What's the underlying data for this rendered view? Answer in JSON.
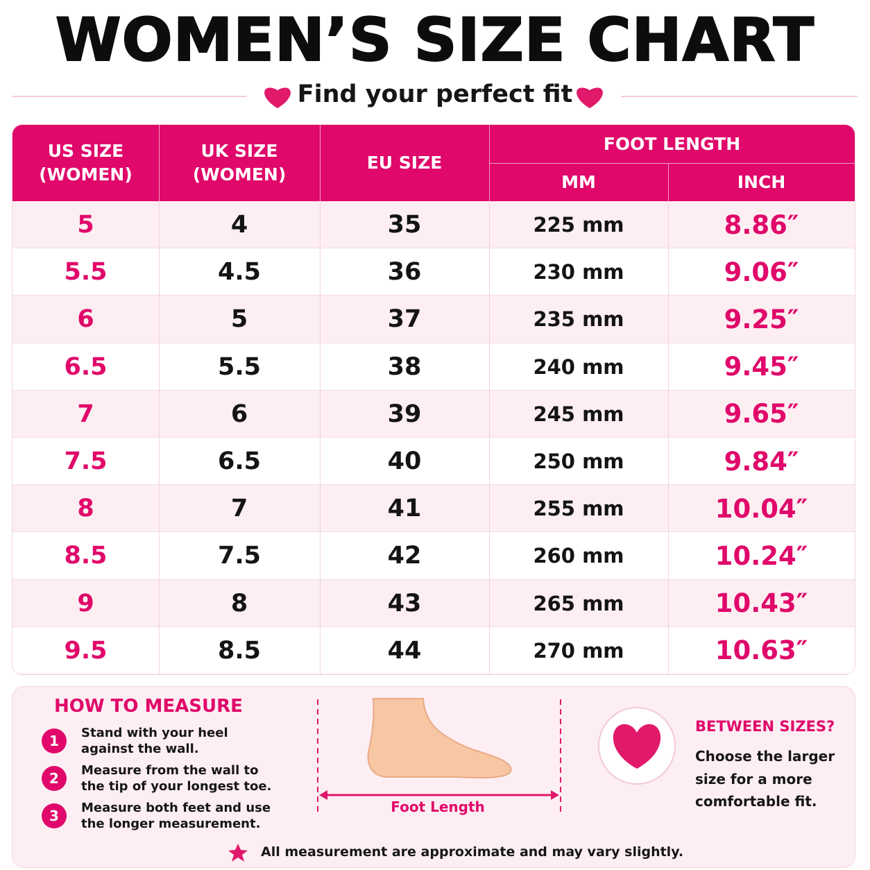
{
  "header": {
    "title": "WOMEN’S SIZE CHART",
    "subtitle": "Find your perfect fit"
  },
  "table": {
    "columns": [
      [
        "US SIZE",
        "(WOMEN)"
      ],
      [
        "UK SIZE",
        "(WOMEN)"
      ],
      [
        "EU SIZE"
      ]
    ],
    "group": "FOOT LENGTH",
    "subcolumns": [
      "MM",
      "INCH"
    ],
    "rows": [
      [
        "5",
        "4",
        "35",
        "225 mm",
        "8.86″"
      ],
      [
        "5.5",
        "4.5",
        "36",
        "230 mm",
        "9.06″"
      ],
      [
        "6",
        "5",
        "37",
        "235 mm",
        "9.25″"
      ],
      [
        "6.5",
        "5.5",
        "38",
        "240 mm",
        "9.45″"
      ],
      [
        "7",
        "6",
        "39",
        "245 mm",
        "9.65″"
      ],
      [
        "7.5",
        "6.5",
        "40",
        "250 mm",
        "9.84″"
      ],
      [
        "8",
        "7",
        "41",
        "255 mm",
        "10.04″"
      ],
      [
        "8.5",
        "7.5",
        "42",
        "260 mm",
        "10.24″"
      ],
      [
        "9",
        "8",
        "43",
        "265 mm",
        "10.43″"
      ],
      [
        "9.5",
        "8.5",
        "44",
        "270 mm",
        "10.63″"
      ]
    ]
  },
  "measure": {
    "title": "HOW TO MEASURE",
    "steps": [
      {
        "number": "1",
        "lines": [
          "Stand with your heel",
          "against the wall."
        ]
      },
      {
        "number": "2",
        "lines": [
          "Measure from the wall to",
          "the tip of your longest toe."
        ]
      },
      {
        "number": "3",
        "lines": [
          "Measure both feet and use",
          "the longer measurement."
        ]
      }
    ],
    "diagram_label": "Foot Length"
  },
  "between": {
    "title": "BETWEEN SIZES?",
    "lines": [
      "Choose the larger",
      "size for a more",
      "comfortable fit."
    ]
  },
  "note": "All measurement are approximate and may vary slightly."
}
